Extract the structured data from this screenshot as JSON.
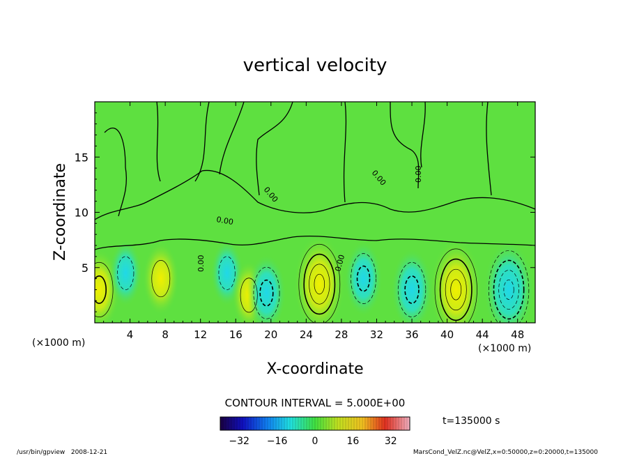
{
  "chart_data": {
    "type": "heatmap",
    "title": "vertical velocity",
    "xlabel": "X-coordinate",
    "ylabel": "Z-coordinate",
    "x_unit_left": "(×1000 m)",
    "x_unit_right": "(×1000 m)",
    "xlim": [
      0,
      50
    ],
    "ylim": [
      0,
      20
    ],
    "x_ticks": [
      4,
      8,
      12,
      16,
      20,
      24,
      28,
      32,
      36,
      40,
      44,
      48
    ],
    "x_tick_labels": [
      "4",
      "8",
      "12",
      "16",
      "20",
      "24",
      "28",
      "32",
      "36",
      "40",
      "44",
      "48"
    ],
    "y_ticks": [
      5,
      10,
      15
    ],
    "y_tick_labels": [
      "5",
      "10",
      "15"
    ],
    "contour_interval_text": "CONTOUR INTERVAL = 5.000E+00",
    "time_text": "t=135000 s",
    "zero_contour_label": "0.00",
    "colorbar": {
      "range": [
        -40,
        40
      ],
      "ticks": [
        -32,
        -16,
        0,
        16,
        32
      ],
      "tick_labels": [
        "−32",
        "−16",
        "0",
        "16",
        "32"
      ]
    },
    "cells": [
      {
        "x": 0.5,
        "z": 3.0,
        "w": 13
      },
      {
        "x": 3.5,
        "z": 4.5,
        "w": -6
      },
      {
        "x": 7.5,
        "z": 4.0,
        "w": 9
      },
      {
        "x": 15.0,
        "z": 4.5,
        "w": -6
      },
      {
        "x": 17.5,
        "z": 2.5,
        "w": 7
      },
      {
        "x": 19.5,
        "z": 2.7,
        "w": -11
      },
      {
        "x": 25.5,
        "z": 3.5,
        "w": 21
      },
      {
        "x": 30.5,
        "z": 4.0,
        "w": -10
      },
      {
        "x": 36.0,
        "z": 3.0,
        "w": -13
      },
      {
        "x": 41.0,
        "z": 3.0,
        "w": 22
      },
      {
        "x": 47.0,
        "z": 3.0,
        "w": -20
      }
    ],
    "footer_left": "/usr/bin/gpview   2008-12-21",
    "footer_right": "MarsCond_VelZ.nc@VelZ,x=0:50000,z=0:20000,t=135000"
  }
}
